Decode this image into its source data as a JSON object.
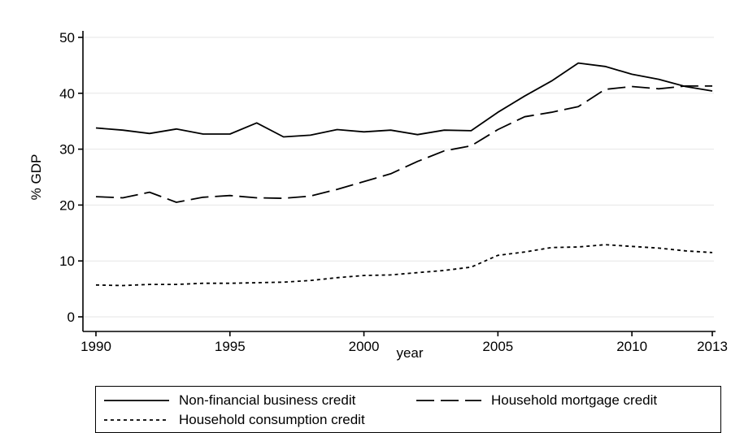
{
  "chart_data": {
    "type": "line",
    "title": "",
    "xlabel": "year",
    "ylabel": "% GDP",
    "x": [
      1990,
      1991,
      1992,
      1993,
      1994,
      1995,
      1996,
      1997,
      1998,
      1999,
      2000,
      2001,
      2002,
      2003,
      2004,
      2005,
      2006,
      2007,
      2008,
      2009,
      2010,
      2011,
      2012,
      2013
    ],
    "xlim": [
      1990,
      2013
    ],
    "ylim": [
      0,
      50
    ],
    "x_ticks": [
      "1990",
      "1995",
      "2000",
      "2005",
      "2010",
      "2013"
    ],
    "y_ticks": [
      "0",
      "10",
      "20",
      "30",
      "40",
      "50"
    ],
    "grid": "horizontal",
    "legend_position": "bottom",
    "series": [
      {
        "name": "Non-financial business credit",
        "style": "solid",
        "values": [
          33.8,
          33.4,
          32.8,
          33.6,
          32.7,
          32.7,
          34.7,
          32.2,
          32.5,
          33.5,
          33.1,
          33.4,
          32.6,
          33.4,
          33.3,
          36.6,
          39.5,
          42.2,
          45.4,
          44.8,
          43.4,
          42.5,
          41.2,
          40.4
        ]
      },
      {
        "name": "Household mortgage credit",
        "style": "longdash",
        "values": [
          21.5,
          21.3,
          22.3,
          20.5,
          21.4,
          21.7,
          21.3,
          21.2,
          21.6,
          22.8,
          24.2,
          25.6,
          27.8,
          29.7,
          30.6,
          33.5,
          35.8,
          36.6,
          37.6,
          40.7,
          41.2,
          40.8,
          41.3,
          41.3
        ]
      },
      {
        "name": "Household consumption credit",
        "style": "shortdash",
        "values": [
          5.7,
          5.6,
          5.8,
          5.8,
          6.0,
          6.0,
          6.1,
          6.2,
          6.5,
          7.0,
          7.4,
          7.5,
          7.9,
          8.3,
          8.9,
          11.0,
          11.6,
          12.4,
          12.5,
          12.9,
          12.6,
          12.3,
          11.8,
          11.5
        ]
      }
    ]
  }
}
